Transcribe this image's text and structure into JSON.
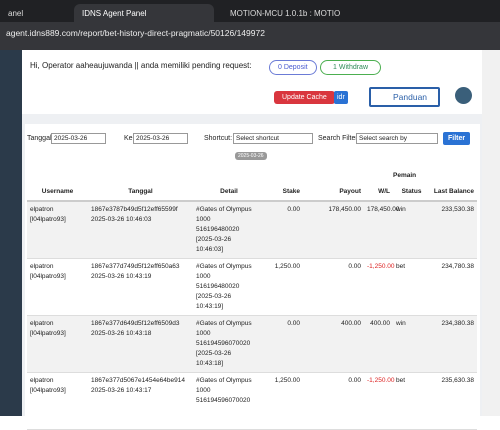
{
  "browser": {
    "tabs": [
      "anel",
      "IDNS Agent Panel",
      "MOTION-MCU 1.0.1b : MOTIO"
    ],
    "url": "agent.idns889.com/report/bet-history-direct-pragmatic/50126/149972"
  },
  "header": {
    "greeting": "Hi, Operator aaheaujuwanda || anda memiliki pending request:",
    "deposit": "0 Deposit",
    "withdraw": "1 Withdraw",
    "update_cache": "Update Cache",
    "currency": "idr",
    "guide": "Panduan"
  },
  "filters": {
    "date_label": "Tanggal",
    "date_from": "2025-03-26",
    "to_label": "Ke",
    "date_to": "2025-03-26",
    "shortcut_label": "Shortcut:",
    "shortcut": "Select shortcut",
    "search_label": "Search Filter:",
    "search": "Select search by",
    "button": "Filter",
    "badge": "2025-03-26"
  },
  "table": {
    "group": "Pemain",
    "columns": [
      "Username",
      "Tanggal",
      "Detail",
      "Stake",
      "Payout",
      "W/L",
      "Status",
      "Last Balance"
    ],
    "rows": [
      {
        "username": [
          "elpatron",
          "[l04lpatro93]"
        ],
        "tanggal": [
          "1867e3787b49d5f12eff65599f",
          "2025-03-26 10:46:03"
        ],
        "detail": [
          "#Gates of Olympus",
          "1000",
          "516196480020",
          "[2025-03-26",
          "10:46:03]"
        ],
        "stake": "0.00",
        "payout": "178,450.00",
        "wl": "178,450.00",
        "status": "win",
        "balance": "233,530.38"
      },
      {
        "username": [
          "elpatron",
          "[l04lpatro93]"
        ],
        "tanggal": [
          "1867e377d749d5f12eff650a63",
          "2025-03-26 10:43:19"
        ],
        "detail": [
          "#Gates of Olympus",
          "1000",
          "516196480020",
          "[2025-03-26",
          "10:43:19]"
        ],
        "stake": "1,250.00",
        "payout": "0.00",
        "wl": "-1,250.00",
        "status": "bet",
        "balance": "234,780.38"
      },
      {
        "username": [
          "elpatron",
          "[l04lpatro93]"
        ],
        "tanggal": [
          "1867e377d649d5f12eff6509d3",
          "2025-03-26 10:43:18"
        ],
        "detail": [
          "#Gates of Olympus",
          "1000",
          "516194596070020",
          "[2025-03-26",
          "10:43:18]"
        ],
        "stake": "0.00",
        "payout": "400.00",
        "wl": "400.00",
        "status": "win",
        "balance": "234,380.38"
      },
      {
        "username": [
          "elpatron",
          "[l04lpatro93]"
        ],
        "tanggal": [
          "1867e377d5067e1454e64be914",
          "2025-03-26 10:43:17"
        ],
        "detail": [
          "#Gates of Olympus",
          "1000",
          "516194596070020"
        ],
        "stake": "1,250.00",
        "payout": "0.00",
        "wl": "-1,250.00",
        "status": "bet",
        "balance": "235,630.38"
      }
    ]
  }
}
